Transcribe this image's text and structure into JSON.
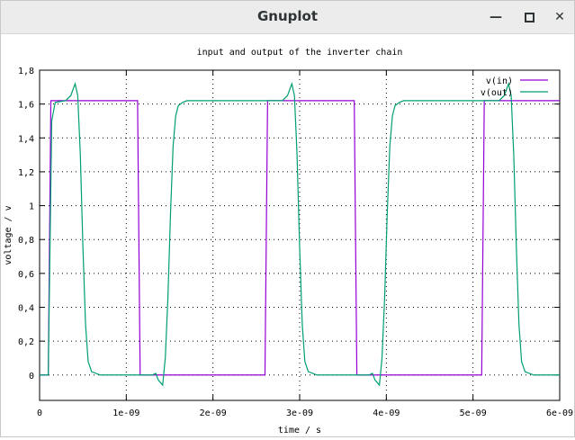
{
  "window": {
    "title": "Gnuplot"
  },
  "controls": {
    "minimize_icon": "minimize-icon",
    "maximize_icon": "maximize-icon",
    "close_icon": "close-icon"
  },
  "chart_data": {
    "type": "line",
    "title": "input and output of the inverter chain",
    "xlabel": "time / s",
    "ylabel": "voltage / v",
    "xlim": [
      0,
      6e-09
    ],
    "ylim": [
      -0.15,
      1.8
    ],
    "grid": true,
    "legend_position": "top-right",
    "xticks": [
      {
        "v": 0,
        "label": "0"
      },
      {
        "v": 1e-09,
        "label": "1e-09"
      },
      {
        "v": 2e-09,
        "label": "2e-09"
      },
      {
        "v": 3e-09,
        "label": "3e-09"
      },
      {
        "v": 4e-09,
        "label": "4e-09"
      },
      {
        "v": 5e-09,
        "label": "5e-09"
      },
      {
        "v": 6e-09,
        "label": "6e-09"
      }
    ],
    "yticks": [
      {
        "v": 0,
        "label": "0"
      },
      {
        "v": 0.2,
        "label": "0,2"
      },
      {
        "v": 0.4,
        "label": "0,4"
      },
      {
        "v": 0.6,
        "label": "0,6"
      },
      {
        "v": 0.8,
        "label": "0,8"
      },
      {
        "v": 1,
        "label": "1"
      },
      {
        "v": 1.2,
        "label": "1,2"
      },
      {
        "v": 1.4,
        "label": "1,4"
      },
      {
        "v": 1.6,
        "label": "1,6"
      },
      {
        "v": 1.8,
        "label": "1,8"
      }
    ],
    "series": [
      {
        "name": "v(in)",
        "color": "#9400d3",
        "x": [
          0,
          1e-10,
          1.3e-10,
          1.13e-09,
          1.16e-09,
          2.6e-09,
          2.63e-09,
          3.63e-09,
          3.66e-09,
          5.1e-09,
          5.13e-09,
          6e-09
        ],
        "y": [
          0,
          0,
          1.62,
          1.62,
          0,
          0,
          1.62,
          1.62,
          0,
          0,
          1.62,
          1.62
        ]
      },
      {
        "name": "v(out)",
        "color": "#009e73",
        "x": [
          0,
          1e-10,
          1.4e-10,
          1.8e-10,
          3e-10,
          3.6e-10,
          4.1e-10,
          4.4e-10,
          4.7e-10,
          5e-10,
          5.3e-10,
          5.6e-10,
          6e-10,
          7e-10,
          8e-10,
          1.13e-09,
          1.3e-09,
          1.34e-09,
          1.37e-09,
          1.42e-09,
          1.45e-09,
          1.48e-09,
          1.51e-09,
          1.54e-09,
          1.57e-09,
          1.6e-09,
          1.65e-09,
          1.7e-09,
          1.8e-09,
          1.95e-09,
          2.6e-09,
          2.63e-09,
          2.8e-09,
          2.86e-09,
          2.91e-09,
          2.94e-09,
          2.97e-09,
          3e-09,
          3.03e-09,
          3.06e-09,
          3.1e-09,
          3.2e-09,
          3.3e-09,
          3.63e-09,
          3.8e-09,
          3.84e-09,
          3.87e-09,
          3.92e-09,
          3.95e-09,
          3.98e-09,
          4.01e-09,
          4.04e-09,
          4.07e-09,
          4.1e-09,
          4.15e-09,
          4.2e-09,
          4.3e-09,
          4.45e-09,
          5.1e-09,
          5.13e-09,
          5.3e-09,
          5.36e-09,
          5.41e-09,
          5.44e-09,
          5.47e-09,
          5.5e-09,
          5.53e-09,
          5.56e-09,
          5.6e-09,
          5.7e-09,
          5.8e-09,
          6e-09
        ],
        "y": [
          0,
          0,
          1.5,
          1.61,
          1.62,
          1.65,
          1.72,
          1.65,
          1.3,
          0.75,
          0.3,
          0.08,
          0.02,
          0,
          0,
          0,
          0,
          0.01,
          -0.03,
          -0.06,
          0.1,
          0.45,
          0.95,
          1.35,
          1.53,
          1.59,
          1.61,
          1.62,
          1.62,
          1.62,
          1.62,
          1.62,
          1.62,
          1.65,
          1.72,
          1.65,
          1.3,
          0.75,
          0.3,
          0.08,
          0.02,
          0,
          0,
          0,
          0,
          0.01,
          -0.03,
          -0.06,
          0.1,
          0.45,
          0.95,
          1.35,
          1.53,
          1.59,
          1.61,
          1.62,
          1.62,
          1.62,
          1.62,
          1.62,
          1.62,
          1.65,
          1.72,
          1.65,
          1.3,
          0.75,
          0.3,
          0.08,
          0.02,
          0,
          0,
          0
        ]
      }
    ]
  }
}
